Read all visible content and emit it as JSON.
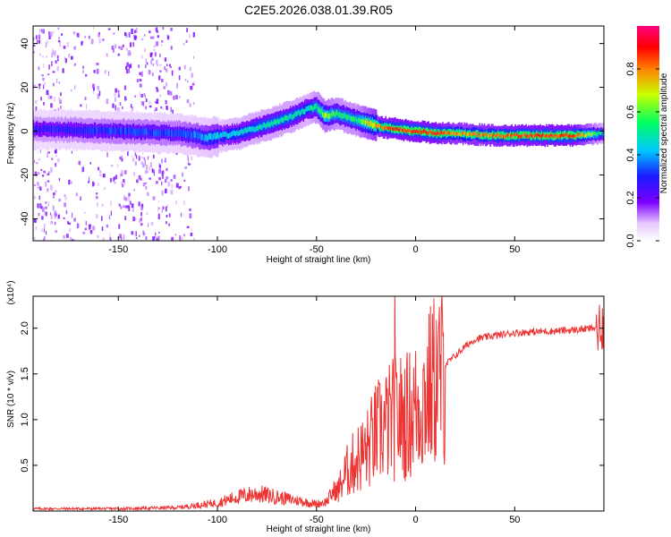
{
  "title": "C2E5.2026.038.01.39.R05",
  "colors": {
    "snr_line": "#ee3333",
    "frame": "#000000"
  },
  "chart_data": [
    {
      "type": "heatmap",
      "title": "C2E5.2026.038.01.39.R05",
      "xlabel": "Height of straight line (km)",
      "ylabel": "Frequency (Hz)",
      "xlim": [
        -193,
        95
      ],
      "ylim": [
        -50,
        48
      ],
      "xticks": [
        -150,
        -100,
        -50,
        0,
        50
      ],
      "yticks": [
        -40,
        -20,
        0,
        20,
        40
      ],
      "colorbar": {
        "label": "Normalized spectral amplitude",
        "range": [
          0.0,
          1.0
        ],
        "ticks": [
          0.0,
          0.2,
          0.4,
          0.6,
          0.8
        ],
        "tick_labels": [
          "0.0",
          "0.2",
          "0.4",
          "0.6",
          "0.8"
        ]
      },
      "ridge": {
        "x": [
          -193,
          -150,
          -120,
          -105,
          -90,
          -75,
          -62,
          -55,
          -50,
          -46,
          -40,
          -30,
          -25,
          -18,
          -10,
          0,
          10,
          20,
          40,
          60,
          80,
          95
        ],
        "frequency": [
          1,
          0,
          -1,
          -3,
          -1,
          3,
          7,
          10,
          11,
          7,
          8,
          5,
          4,
          2,
          1,
          0,
          -1,
          -1,
          -2,
          -2,
          -2,
          -1
        ],
        "peak_amplitude": [
          0.3,
          0.35,
          0.35,
          0.45,
          0.5,
          0.55,
          0.55,
          0.5,
          0.6,
          0.7,
          0.6,
          0.6,
          0.75,
          0.9,
          0.95,
          0.95,
          0.95,
          0.85,
          0.9,
          0.95,
          0.95,
          0.5
        ]
      }
    },
    {
      "type": "line",
      "xlabel": "Height of straight line (km)",
      "ylabel": "SNR (10 * v/v)",
      "yscale_label": "(x10⁴)",
      "xlim": [
        -193,
        95
      ],
      "ylim": [
        0,
        2.35
      ],
      "xticks": [
        -150,
        -100,
        -50,
        0,
        50
      ],
      "yticks": [
        0.5,
        1.0,
        1.5,
        2.0
      ],
      "ytick_labels": [
        "0.5",
        "1.0",
        "1.5",
        "2.0"
      ],
      "series": [
        {
          "name": "SNR",
          "envelope_x": [
            -193,
            -150,
            -120,
            -110,
            -100,
            -90,
            -80,
            -70,
            -60,
            -50,
            -45,
            -40,
            -35,
            -30,
            -25,
            -20,
            -15,
            -10,
            -5,
            0,
            5,
            10,
            15,
            20,
            25,
            30,
            40,
            50,
            60,
            70,
            80,
            90,
            95
          ],
          "envelope_y": [
            0.02,
            0.02,
            0.03,
            0.05,
            0.07,
            0.12,
            0.15,
            0.12,
            0.09,
            0.06,
            0.08,
            0.2,
            0.45,
            0.6,
            0.7,
            0.9,
            1.0,
            1.1,
            1.1,
            1.2,
            1.35,
            1.55,
            1.6,
            1.7,
            1.8,
            1.88,
            1.92,
            1.95,
            1.96,
            1.97,
            1.98,
            2.0,
            2.05
          ]
        }
      ]
    }
  ]
}
